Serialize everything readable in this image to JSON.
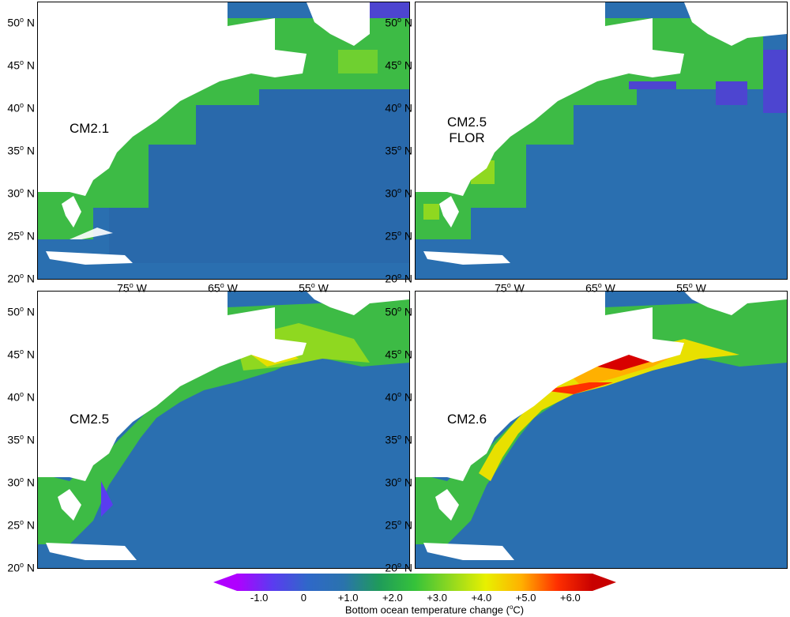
{
  "panels": [
    {
      "id": "cm21",
      "label_lines": [
        "CM2.1"
      ]
    },
    {
      "id": "cm25flor",
      "label_lines": [
        "CM2.5",
        "FLOR"
      ]
    },
    {
      "id": "cm25",
      "label_lines": [
        "CM2.5"
      ]
    },
    {
      "id": "cm26",
      "label_lines": [
        "CM2.6"
      ]
    }
  ],
  "latitude_labels": [
    "50",
    "45",
    "40",
    "35",
    "30",
    "25",
    "20"
  ],
  "latitude_suffix": "N",
  "longitude_labels": [
    "75",
    "65",
    "55"
  ],
  "longitude_suffix": "W",
  "degree_mark": "o",
  "colorbar": {
    "ticks": [
      "-1.0",
      "0",
      "+1.0",
      "+2.0",
      "+3.0",
      "+4.0",
      "+5.0",
      "+6.0"
    ],
    "title_text": "Bottom ocean temperature change (",
    "title_unit_sup": "o",
    "title_unit": "C)",
    "min": -1.5,
    "max": 6.5,
    "colors": [
      "#b000ff",
      "#5a3cf0",
      "#2f68c8",
      "#2a73ad",
      "#1f9b5a",
      "#35c23a",
      "#8fd820",
      "#e8f000",
      "#ffb000",
      "#ff3000",
      "#c80000"
    ]
  },
  "colors": {
    "ocean": "#2a6fb0",
    "shelf": "#3dbb45",
    "warm": "#e8e000",
    "hot": "#d80000",
    "land": "#ffffff"
  }
}
